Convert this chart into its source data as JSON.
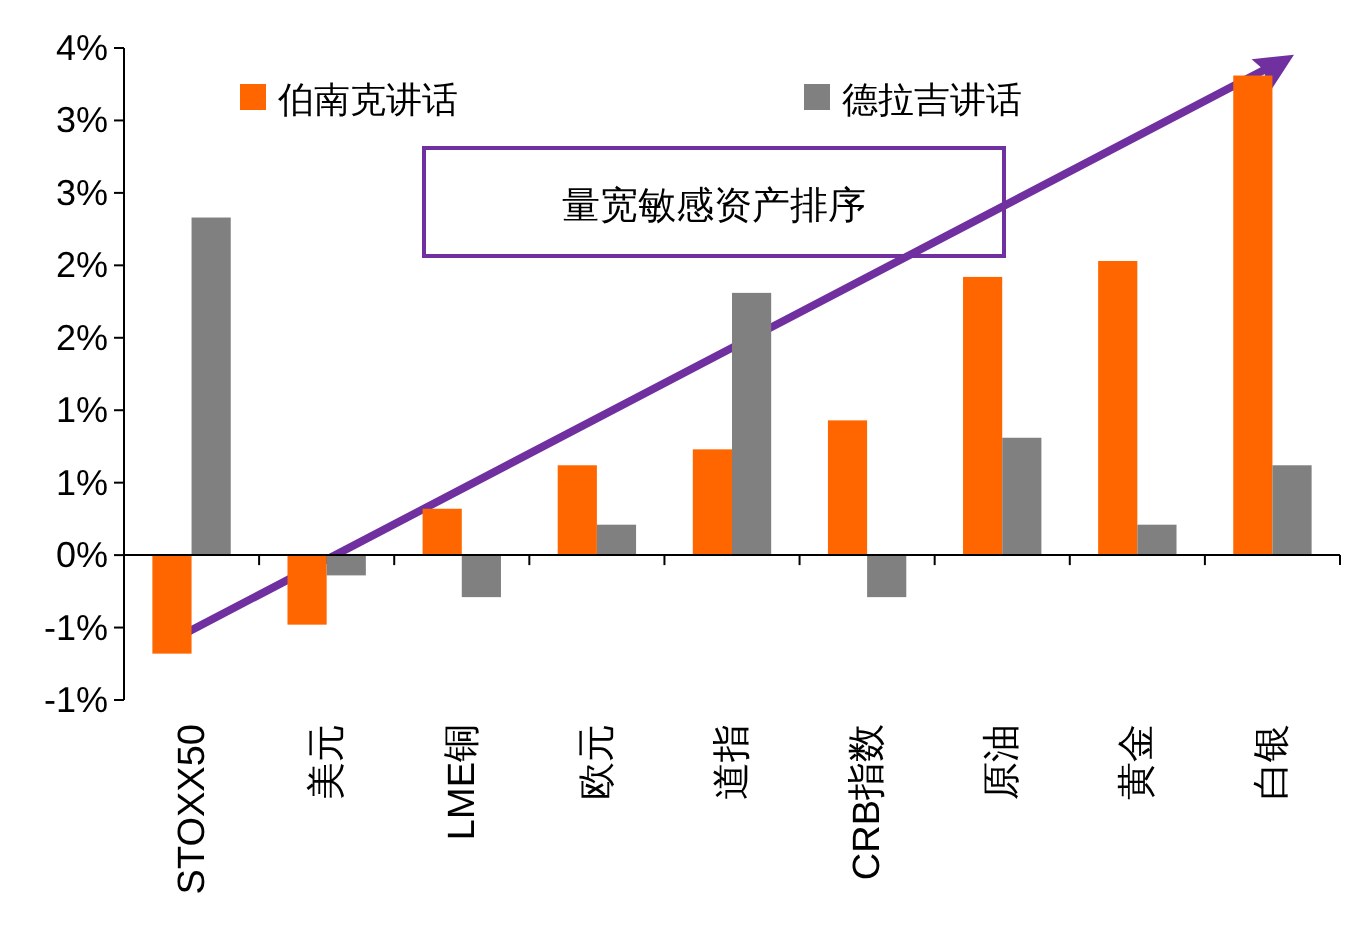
{
  "chart_data": {
    "type": "bar",
    "categories": [
      "STOXX50",
      "美元",
      "LME铜",
      "欧元",
      "道指",
      "CRB指数",
      "原油",
      "黄金",
      "白银"
    ],
    "series": [
      {
        "name": "伯南克讲话",
        "color": "#ff6600",
        "values": [
          -0.68,
          -0.48,
          0.32,
          0.62,
          0.73,
          0.93,
          1.92,
          2.03,
          3.31
        ]
      },
      {
        "name": "德拉吉讲话",
        "color": "#808080",
        "values": [
          2.33,
          -0.14,
          -0.29,
          0.21,
          1.81,
          -0.29,
          0.81,
          0.21,
          0.62
        ]
      }
    ],
    "ylim": [
      -1.0,
      3.5
    ],
    "yticks": [
      {
        "value": -1.0,
        "label": "-1%"
      },
      {
        "value": -0.5,
        "label": "-1%"
      },
      {
        "value": 0,
        "label": "0%"
      },
      {
        "value": 0.5,
        "label": "1%"
      },
      {
        "value": 1.0,
        "label": "1%"
      },
      {
        "value": 1.5,
        "label": "2%"
      },
      {
        "value": 2.0,
        "label": "2%"
      },
      {
        "value": 2.5,
        "label": "3%"
      },
      {
        "value": 3.0,
        "label": "3%"
      },
      {
        "value": 3.5,
        "label": "4%"
      }
    ],
    "legend": "top",
    "annotations": [
      "量宽敏感资产排序"
    ]
  }
}
